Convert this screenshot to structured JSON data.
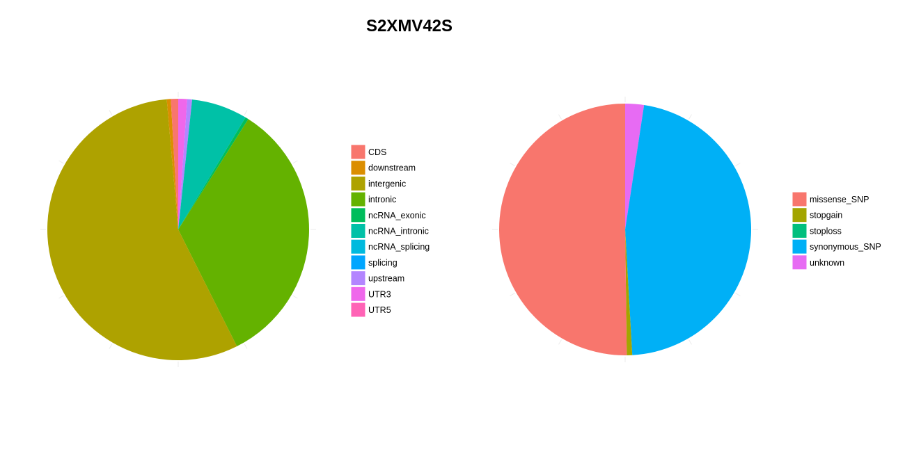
{
  "title": "S2XMV42S",
  "chart_data": [
    {
      "type": "pie",
      "title": "S2XMV42S",
      "legend_position": "right",
      "categories": [
        "CDS",
        "downstream",
        "intergenic",
        "intronic",
        "ncRNA_exonic",
        "ncRNA_intronic",
        "ncRNA_splicing",
        "splicing",
        "upstream",
        "UTR3",
        "UTR5"
      ],
      "values": [
        0.9,
        0.5,
        56.0,
        33.6,
        0.4,
        6.9,
        0.0,
        0.0,
        0.6,
        1.1,
        0.0
      ],
      "colors": [
        "#F8766D",
        "#DB8E00",
        "#AEA200",
        "#64B200",
        "#00BD5C",
        "#00C1A7",
        "#00BADE",
        "#00A6FF",
        "#B385FF",
        "#EF67EB",
        "#FF63B6"
      ]
    },
    {
      "type": "pie",
      "legend_position": "right",
      "categories": [
        "missense_SNP",
        "stopgain",
        "stoploss",
        "synonymous_SNP",
        "unknown"
      ],
      "values": [
        50.2,
        0.7,
        0.0,
        46.7,
        2.4
      ],
      "colors": [
        "#F8766D",
        "#A3A500",
        "#00BF7D",
        "#00B0F6",
        "#E76BF3"
      ]
    }
  ]
}
